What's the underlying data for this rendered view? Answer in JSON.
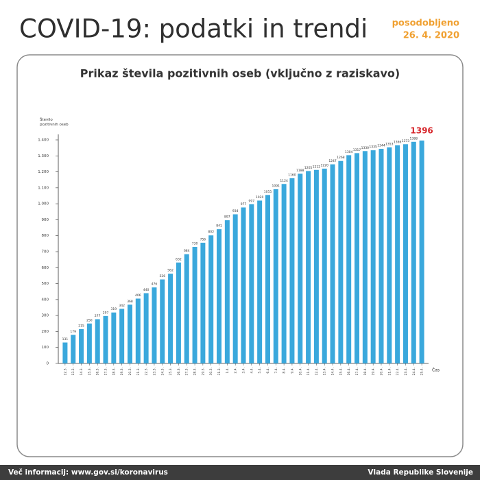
{
  "header": {
    "title": "COVID-19: podatki in trendi",
    "updated_label": "posodobljeno",
    "updated_date": "26. 4. 2020"
  },
  "footer": {
    "info": "Več informacij: www.gov.si/koronavirus",
    "publisher": "Vlada Republike Slovenije"
  },
  "chart_data": {
    "type": "bar",
    "title": "Prikaz števila pozitivnih oseb (vključno z raziskavo)",
    "y_label": "Število pozitivnih oseb",
    "x_label": "Čas",
    "categories": [
      "12.3.",
      "13.3.",
      "14.3.",
      "15.3.",
      "16.3.",
      "17.3.",
      "18.3.",
      "19.3.",
      "20.3.",
      "21.3.",
      "22.3.",
      "23.3.",
      "24.3.",
      "25.3.",
      "26.3.",
      "27.3.",
      "28.3.",
      "29.3.",
      "30.3.",
      "31.3.",
      "1.4.",
      "2.4.",
      "3.4.",
      "4.4.",
      "5.4.",
      "6.4.",
      "7.4.",
      "8.4.",
      "9.4.",
      "10.4.",
      "11.4.",
      "12.4.",
      "13.4.",
      "14.4.",
      "15.4.",
      "16.4.",
      "17.4.",
      "18.4.",
      "19.4.",
      "20.4.",
      "21.4.",
      "22.4.",
      "23.4.",
      "24.4.",
      "25.4."
    ],
    "values": [
      131,
      179,
      215,
      250,
      277,
      297,
      319,
      342,
      368,
      406,
      440,
      476,
      526,
      562,
      632,
      684,
      730,
      756,
      802,
      841,
      897,
      934,
      977,
      997,
      1020,
      1055,
      1091,
      1124,
      1160,
      1188,
      1205,
      1212,
      1220,
      1247,
      1268,
      1304,
      1317,
      1330,
      1335,
      1344,
      1353,
      1366,
      1373,
      1388,
      1396
    ],
    "color": "#3aa8dc",
    "highlight_color": "#d7262b",
    "ylim": [
      0,
      1400
    ],
    "yticks": [
      0,
      100,
      200,
      300,
      400,
      500,
      600,
      700,
      800,
      900,
      {
        "value": 1000,
        "label": "1.000"
      },
      {
        "value": 1100,
        "label": "1.100"
      },
      {
        "value": 1200,
        "label": "1.200"
      },
      {
        "value": 1300,
        "label": "1.300"
      },
      {
        "value": 1400,
        "label": "1.400"
      }
    ]
  }
}
